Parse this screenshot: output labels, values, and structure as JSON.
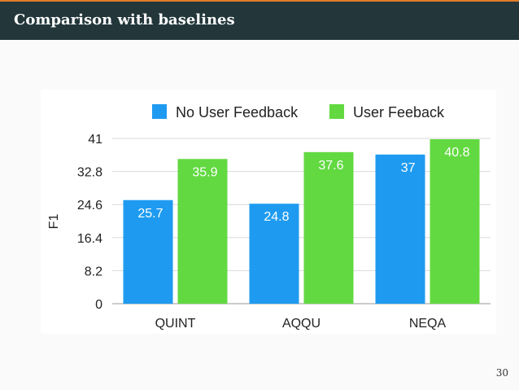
{
  "slide": {
    "title": "Comparison with baselines",
    "page_number": "30"
  },
  "colors": {
    "header_bg": "#23373b",
    "accent_line": "#e07b2a",
    "series_no_feedback": "#1e9bf0",
    "series_feedback": "#62d941"
  },
  "chart_data": {
    "type": "bar",
    "categories": [
      "QUINT",
      "AQQU",
      "NEQA"
    ],
    "series": [
      {
        "name": "No User Feedback",
        "values": [
          25.7,
          24.8,
          37
        ],
        "labels": [
          "25.7",
          "24.8",
          "37"
        ]
      },
      {
        "name": "User Feeback",
        "values": [
          35.9,
          37.6,
          40.8
        ],
        "labels": [
          "35.9",
          "37.6",
          "40.8"
        ]
      }
    ],
    "ylabel": "F1",
    "xlabel": "",
    "ylim": [
      0,
      41
    ],
    "yticks": [
      "0",
      "8.2",
      "16.4",
      "24.6",
      "32.8",
      "41"
    ],
    "grid": true,
    "legend": "top"
  }
}
